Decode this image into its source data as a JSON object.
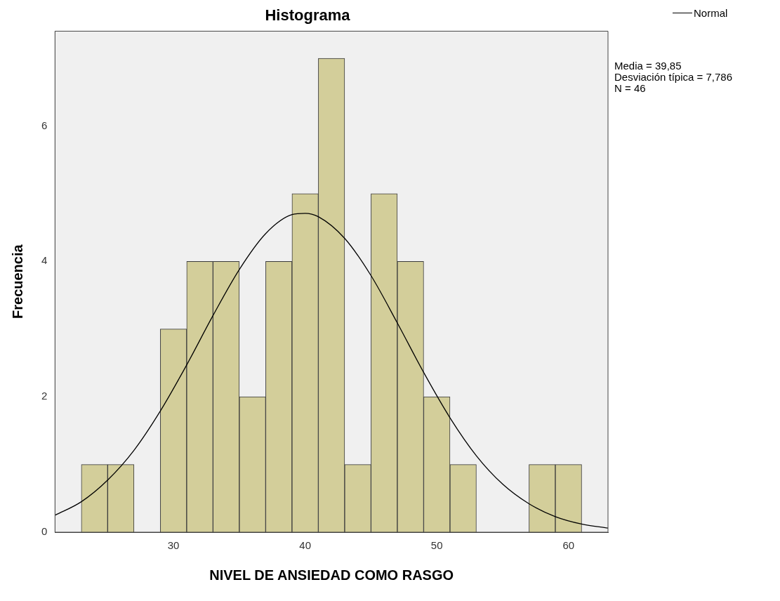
{
  "chart_data": {
    "type": "histogram",
    "title": "Histograma",
    "xlabel": "NIVEL DE ANSIEDAD COMO RASGO",
    "ylabel": "Frecuencia",
    "bins": [
      23,
      25,
      27,
      29,
      31,
      33,
      35,
      37,
      39,
      41,
      43,
      45,
      47,
      49,
      51,
      53,
      55,
      57,
      59,
      61
    ],
    "values": [
      1,
      1,
      0,
      3,
      4,
      4,
      2,
      4,
      5,
      7,
      1,
      5,
      4,
      2,
      1,
      0,
      0,
      1,
      1
    ],
    "color": "#d3ce9a",
    "series": [
      {
        "type": "line",
        "name": "Normal",
        "color": "#000000",
        "x": [
          21,
          23,
          25,
          27,
          29,
          31,
          33,
          35,
          37,
          39,
          40,
          41,
          43,
          45,
          47,
          49,
          51,
          53,
          55,
          57,
          59,
          61,
          63
        ],
        "values": [
          0.25,
          0.45,
          0.77,
          1.21,
          1.79,
          2.47,
          3.2,
          3.88,
          4.41,
          4.69,
          4.71,
          4.66,
          4.34,
          3.79,
          3.09,
          2.36,
          1.69,
          1.13,
          0.71,
          0.42,
          0.23,
          0.12,
          0.06
        ]
      }
    ],
    "xlim": [
      21,
      63
    ],
    "xticks": [
      30,
      40,
      50,
      60
    ],
    "ylim": [
      0,
      7.4
    ],
    "yticks": [
      0,
      2,
      4,
      6
    ],
    "legend": "top right",
    "annotations": [
      "Media = 39,85",
      "Desviación típica = 7,786",
      "N = 46"
    ]
  }
}
